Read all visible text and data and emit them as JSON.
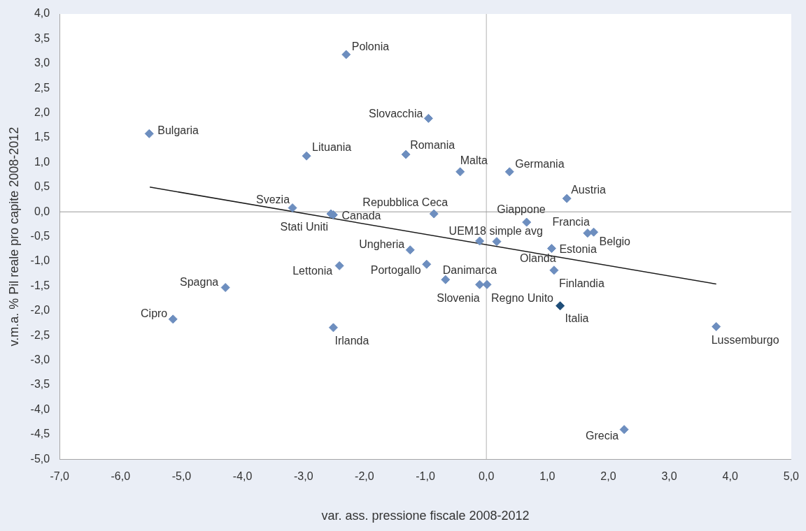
{
  "chart_data": {
    "type": "scatter",
    "xlabel": "var. ass. pressione fiscale 2008-2012",
    "ylabel": "v.m.a. % Pil reale pro capite 2008-2012",
    "xlim": [
      -7,
      5
    ],
    "xticks": [
      {
        "value": -7,
        "label": "-7,0"
      },
      {
        "value": -6,
        "label": "-6,0"
      },
      {
        "value": -5,
        "label": "-5,0"
      },
      {
        "value": -4,
        "label": "-4,0"
      },
      {
        "value": -3,
        "label": "-3,0"
      },
      {
        "value": -2,
        "label": "-2,0"
      },
      {
        "value": -1,
        "label": "-1,0"
      },
      {
        "value": 0,
        "label": "0,0"
      },
      {
        "value": 1,
        "label": "1,0"
      },
      {
        "value": 2,
        "label": "2,0"
      },
      {
        "value": 3,
        "label": "3,0"
      },
      {
        "value": 4,
        "label": "4,0"
      },
      {
        "value": 5,
        "label": "5,0"
      }
    ],
    "ylim": [
      -5,
      4
    ],
    "yticks": [
      {
        "value": -5,
        "label": "-5,0"
      },
      {
        "value": -4.5,
        "label": "-4,5"
      },
      {
        "value": -4,
        "label": "-4,0"
      },
      {
        "value": -3.5,
        "label": "-3,5"
      },
      {
        "value": -3,
        "label": "-3,0"
      },
      {
        "value": -2.5,
        "label": "-2,5"
      },
      {
        "value": -2,
        "label": "-2,0"
      },
      {
        "value": -1.5,
        "label": "-1,5"
      },
      {
        "value": -1,
        "label": "-1,0"
      },
      {
        "value": -0.5,
        "label": "-0,5"
      },
      {
        "value": 0,
        "label": "0,0"
      },
      {
        "value": 0.5,
        "label": "0,5"
      },
      {
        "value": 1,
        "label": "1,0"
      },
      {
        "value": 1.5,
        "label": "1,5"
      },
      {
        "value": 2,
        "label": "2,0"
      },
      {
        "value": 2.5,
        "label": "2,5"
      },
      {
        "value": 3,
        "label": "3,0"
      },
      {
        "value": 3.5,
        "label": "3,5"
      },
      {
        "value": 4,
        "label": "4,0"
      }
    ],
    "grid": false,
    "legend": false,
    "ref_lines": [
      {
        "axis": "x",
        "value": 0,
        "color": "#b4b4b4"
      },
      {
        "axis": "y",
        "value": 0,
        "color": "#999999"
      }
    ],
    "series": [
      {
        "marker": "diamond",
        "x": [
          -2.3,
          -0.95,
          -5.53,
          -2.95,
          -1.32,
          -0.43,
          0.38,
          1.32,
          -3.18,
          -2.55,
          -2.51,
          -0.86,
          0.66,
          1.66,
          1.76,
          -0.11,
          0.17,
          1.07,
          -1.25,
          -2.41,
          -0.98,
          -0.67,
          -0.11,
          0.01,
          1.11,
          1.21,
          -4.28,
          -5.14,
          -2.51,
          3.77,
          2.26
        ],
        "values": [
          3.18,
          1.89,
          1.58,
          1.13,
          1.16,
          0.81,
          0.81,
          0.27,
          0.08,
          -0.04,
          -0.06,
          -0.04,
          -0.21,
          -0.43,
          -0.41,
          -0.59,
          -0.6,
          -0.74,
          -0.77,
          -1.09,
          -1.06,
          -1.37,
          -1.47,
          -1.47,
          -1.18,
          -1.9,
          -1.53,
          -2.17,
          -2.34,
          -2.32,
          -4.4
        ],
        "colors": [
          "#6d8ebf",
          "#6d8ebf",
          "#6d8ebf",
          "#6d8ebf",
          "#6d8ebf",
          "#6d8ebf",
          "#6d8ebf",
          "#6d8ebf",
          "#6d8ebf",
          "#6d8ebf",
          "#6d8ebf",
          "#6d8ebf",
          "#6d8ebf",
          "#6d8ebf",
          "#6d8ebf",
          "#6d8ebf",
          "#6d8ebf",
          "#6d8ebf",
          "#6d8ebf",
          "#6d8ebf",
          "#6d8ebf",
          "#6d8ebf",
          "#6d8ebf",
          "#6d8ebf",
          "#6d8ebf",
          "#1f4e79",
          "#6d8ebf",
          "#6d8ebf",
          "#6d8ebf",
          "#6d8ebf",
          "#6d8ebf"
        ]
      },
      {
        "type": "line",
        "marker": "none",
        "color": "#1a1a1a",
        "x": [
          -5.52,
          3.77
        ],
        "values": [
          0.5,
          -1.46
        ]
      }
    ],
    "annotations": [
      {
        "text": "Polonia",
        "x": -2.3,
        "y": 3.18
      },
      {
        "text": "Slovacchia",
        "x": -0.95,
        "y": 1.89
      },
      {
        "text": "Bulgaria",
        "x": -5.53,
        "y": 1.58
      },
      {
        "text": "Lituania",
        "x": -2.95,
        "y": 1.13
      },
      {
        "text": "Romania",
        "x": -1.32,
        "y": 1.16
      },
      {
        "text": "Malta",
        "x": -0.43,
        "y": 0.81
      },
      {
        "text": "Germania",
        "x": 0.38,
        "y": 0.81
      },
      {
        "text": "Austria",
        "x": 1.32,
        "y": 0.27
      },
      {
        "text": "Svezia",
        "x": -3.18,
        "y": 0.08
      },
      {
        "text": "Stati Uniti",
        "x": -2.55,
        "y": -0.04
      },
      {
        "text": "Canada",
        "x": -2.51,
        "y": -0.06
      },
      {
        "text": "Repubblica Ceca",
        "x": -0.86,
        "y": -0.04
      },
      {
        "text": "Giappone",
        "x": 0.66,
        "y": -0.21
      },
      {
        "text": "Francia",
        "x": 1.66,
        "y": -0.43
      },
      {
        "text": "Belgio",
        "x": 1.76,
        "y": -0.41
      },
      {
        "text": "UEM18 simple avg",
        "x": -0.11,
        "y": -0.59
      },
      {
        "text": "Olanda",
        "x": 0.17,
        "y": -0.6
      },
      {
        "text": "Estonia",
        "x": 1.07,
        "y": -0.74
      },
      {
        "text": "Ungheria",
        "x": -1.25,
        "y": -0.77
      },
      {
        "text": "Lettonia",
        "x": -2.41,
        "y": -1.09
      },
      {
        "text": "Portogallo",
        "x": -0.98,
        "y": -1.06
      },
      {
        "text": "Danimarca",
        "x": -0.67,
        "y": -1.37
      },
      {
        "text": "Slovenia",
        "x": -0.11,
        "y": -1.47
      },
      {
        "text": "Regno Unito",
        "x": 0.01,
        "y": -1.47
      },
      {
        "text": "Finlandia",
        "x": 1.11,
        "y": -1.18
      },
      {
        "text": "Italia",
        "x": 1.21,
        "y": -1.9
      },
      {
        "text": "Spagna",
        "x": -4.28,
        "y": -1.53
      },
      {
        "text": "Cipro",
        "x": -5.14,
        "y": -2.17
      },
      {
        "text": "Irlanda",
        "x": -2.51,
        "y": -2.34
      },
      {
        "text": "Lussemburgo",
        "x": 3.77,
        "y": -2.32
      },
      {
        "text": "Grecia",
        "x": 2.26,
        "y": -4.4
      }
    ]
  }
}
